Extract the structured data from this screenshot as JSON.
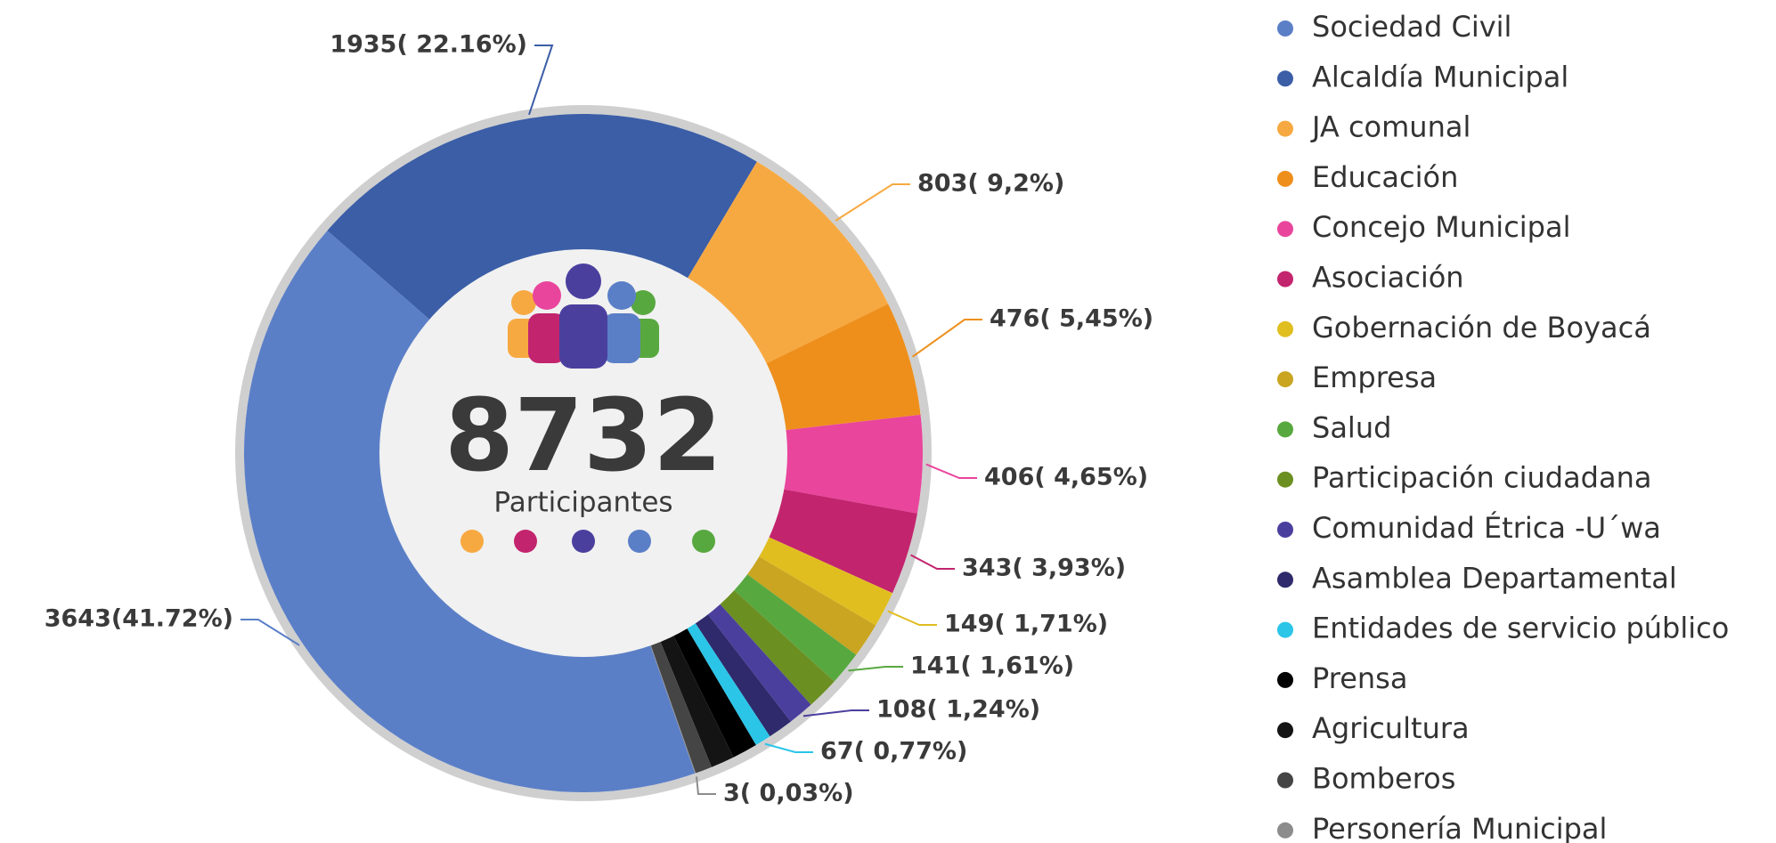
{
  "chart_data": {
    "type": "pie",
    "donut": true,
    "total": 8732,
    "center_label": "Participantes",
    "categories": [
      "Sociedad Civil",
      "Alcaldía Municipal",
      "JA comunal",
      "Educación",
      "Concejo Municipal",
      "Asociación",
      "Gobernación de Boyacá",
      "Empresa",
      "Salud",
      "Participación ciudadana",
      "Comunidad Étrica -U´wa",
      "Asamblea Departamental",
      "Entidades de servicio público",
      "Prensa",
      "Agricultura",
      "Bomberos",
      "Personería Municipal"
    ],
    "values": [
      3643,
      1935,
      803,
      476,
      406,
      343,
      149,
      145,
      141,
      135,
      108,
      105,
      67,
      105,
      98,
      70,
      3
    ],
    "value_labels": [
      "3643(41.72%)",
      "1935( 22.16%)",
      "803( 9,2%)",
      "476( 5,45%)",
      "406( 4,65%)",
      "343( 3,93%)",
      "149( 1,71%)",
      null,
      "141( 1,61%)",
      null,
      "108( 1,24%)",
      null,
      "67( 0,77%)",
      null,
      null,
      null,
      "3( 0,03%)"
    ],
    "colors": [
      "#5b7fc7",
      "#3b5ea6",
      "#f7a941",
      "#ee8f1c",
      "#e9459c",
      "#c3246e",
      "#e0be20",
      "#c9a521",
      "#58a840",
      "#6c8f22",
      "#4b3f9e",
      "#2e2a6b",
      "#2bc5e8",
      "#000000",
      "#141414",
      "#454545",
      "#8c8c8c"
    ]
  }
}
